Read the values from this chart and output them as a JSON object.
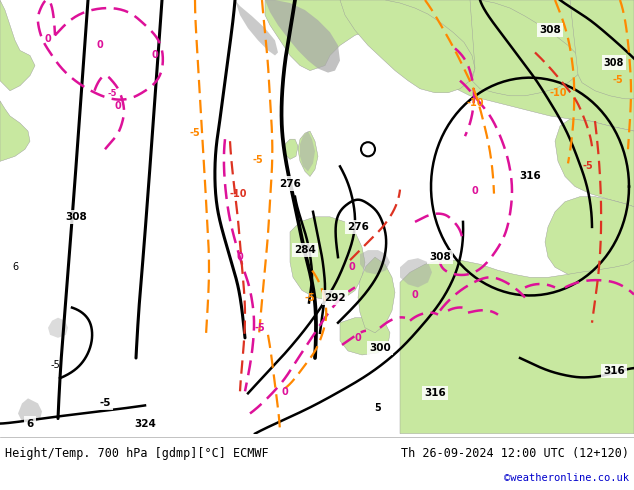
{
  "title_left": "Height/Temp. 700 hPa [gdmp][°C] ECMWF",
  "title_right": "Th 26-09-2024 12:00 UTC (12+120)",
  "credit": "©weatheronline.co.uk",
  "footer_bg": "#ffffff",
  "credit_color": "#0000cc",
  "fig_width": 6.34,
  "fig_height": 4.9,
  "dpi": 100,
  "ocean_color": "#e8e8e8",
  "land_color": "#c8e8a0",
  "gray_color": "#a8a8a8",
  "land_light": "#d8f0b0"
}
